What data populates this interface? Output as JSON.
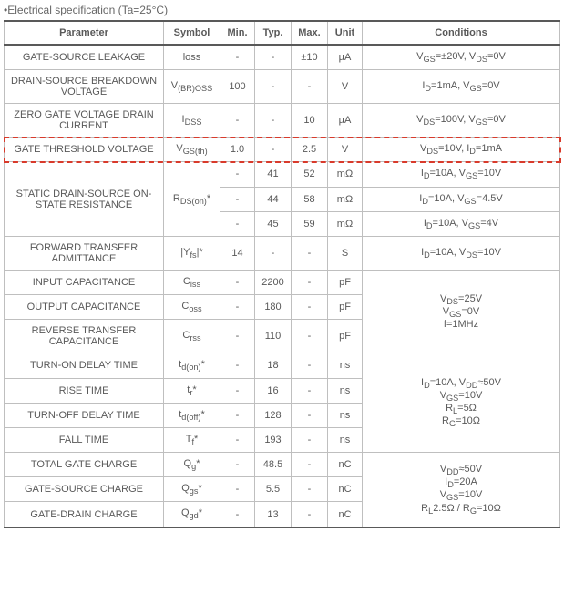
{
  "caption": "•Electrical specification (Ta=25°C)",
  "headers": {
    "parameter": "Parameter",
    "symbol": "Symbol",
    "min": "Min.",
    "typ": "Typ.",
    "max": "Max.",
    "unit": "Unit",
    "conditions": "Conditions"
  },
  "col_widths": {
    "parameter": 175,
    "symbol": 62,
    "min": 38,
    "typ": 40,
    "max": 40,
    "unit": 38,
    "conditions": 158
  },
  "highlight_color": "#d93a2b",
  "rows": [
    {
      "parameter": "GATE-SOURCE LEAKAGE",
      "symbol_html": "loss",
      "min": "-",
      "typ": "-",
      "max": "±10",
      "unit": "µA",
      "cond_html": "V<sub>GS</sub>=±20V, V<sub>DS</sub>=0V"
    },
    {
      "parameter": "DRAIN-SOURCE BREAKDOWN VOLTAGE",
      "symbol_html": "V<sub>(BR)OSS</sub>",
      "min": "100",
      "typ": "-",
      "max": "-",
      "unit": "V",
      "cond_html": "I<sub>D</sub>=1mA, V<sub>GS</sub>=0V"
    },
    {
      "parameter": "ZERO GATE VOLTAGE DRAIN CURRENT",
      "symbol_html": "I<sub>DSS</sub>",
      "min": "-",
      "typ": "-",
      "max": "10",
      "unit": "µA",
      "cond_html": "V<sub>DS</sub>=100V, V<sub>GS</sub>=0V"
    },
    {
      "parameter": "GATE THRESHOLD VOLTAGE",
      "symbol_html": "V<sub>GS(th)</sub>",
      "min": "1.0",
      "typ": "-",
      "max": "2.5",
      "unit": "V",
      "cond_html": "V<sub>DS</sub>=10V, I<sub>D</sub>=1mA",
      "highlight": true
    },
    {
      "parameter": "STATIC DRAIN-SOURCE ON-STATE RESISTANCE",
      "symbol_html": "R<sub>DS(on)</sub>*",
      "rowspan": 3,
      "subrows": [
        {
          "min": "-",
          "typ": "41",
          "max": "52",
          "unit": "mΩ",
          "cond_html": "I<sub>D</sub>=10A, V<sub>GS</sub>=10V"
        },
        {
          "min": "-",
          "typ": "44",
          "max": "58",
          "unit": "mΩ",
          "cond_html": "I<sub>D</sub>=10A, V<sub>GS</sub>=4.5V"
        },
        {
          "min": "-",
          "typ": "45",
          "max": "59",
          "unit": "mΩ",
          "cond_html": "I<sub>D</sub>=10A, V<sub>GS</sub>=4V"
        }
      ]
    },
    {
      "parameter": "FORWARD TRANSFER ADMITTANCE",
      "symbol_html": "|Y<sub>fs</sub>|*",
      "min": "14",
      "typ": "-",
      "max": "-",
      "unit": "S",
      "cond_html": "I<sub>D</sub>=10A, V<sub>DS</sub>=10V"
    },
    {
      "parameter": "INPUT CAPACITANCE",
      "symbol_html": "C<sub>iss</sub>",
      "min": "-",
      "typ": "2200",
      "max": "-",
      "unit": "pF",
      "cond_rowspan": 3,
      "cond_html": "V<sub>DS</sub>=25V<br>V<sub>GS</sub>=0V<br>f=1MHz"
    },
    {
      "parameter": "OUTPUT CAPACITANCE",
      "symbol_html": "C<sub>oss</sub>",
      "min": "-",
      "typ": "180",
      "max": "-",
      "unit": "pF"
    },
    {
      "parameter": "REVERSE TRANSFER CAPACITANCE",
      "symbol_html": "C<sub>rss</sub>",
      "min": "-",
      "typ": "110",
      "max": "-",
      "unit": "pF"
    },
    {
      "parameter": "TURN-ON DELAY TIME",
      "symbol_html": "t<sub>d(on)</sub>*",
      "min": "-",
      "typ": "18",
      "max": "-",
      "unit": "ns",
      "cond_rowspan": 4,
      "cond_html": "I<sub>D</sub>=10A, V<sub>DD</sub>≈50V<br>V<sub>GS</sub>=10V<br>R<sub>L</sub>=5Ω<br>R<sub>G</sub>=10Ω"
    },
    {
      "parameter": "RISE TIME",
      "symbol_html": "t<sub>r</sub>*",
      "min": "-",
      "typ": "16",
      "max": "-",
      "unit": "ns"
    },
    {
      "parameter": "TURN-OFF DELAY TIME",
      "symbol_html": "t<sub>d(off)</sub>*",
      "min": "-",
      "typ": "128",
      "max": "-",
      "unit": "ns"
    },
    {
      "parameter": "FALL TIME",
      "symbol_html": "T<sub>f</sub>*",
      "min": "-",
      "typ": "193",
      "max": "-",
      "unit": "ns"
    },
    {
      "parameter": "TOTAL GATE CHARGE",
      "symbol_html": "Q<sub>g</sub>*",
      "min": "-",
      "typ": "48.5",
      "max": "-",
      "unit": "nC",
      "cond_rowspan": 3,
      "cond_html": "V<sub>DD</sub>≈50V<br>I<sub>D</sub>=20A<br>V<sub>GS</sub>=10V<br>R<sub>L</sub>2.5Ω / R<sub>G</sub>=10Ω"
    },
    {
      "parameter": "GATE-SOURCE CHARGE",
      "symbol_html": "Q<sub>gs</sub>*",
      "min": "-",
      "typ": "5.5",
      "max": "-",
      "unit": "nC"
    },
    {
      "parameter": "GATE-DRAIN CHARGE",
      "symbol_html": "Q<sub>gd</sub>*",
      "min": "-",
      "typ": "13",
      "max": "-",
      "unit": "nC"
    }
  ]
}
